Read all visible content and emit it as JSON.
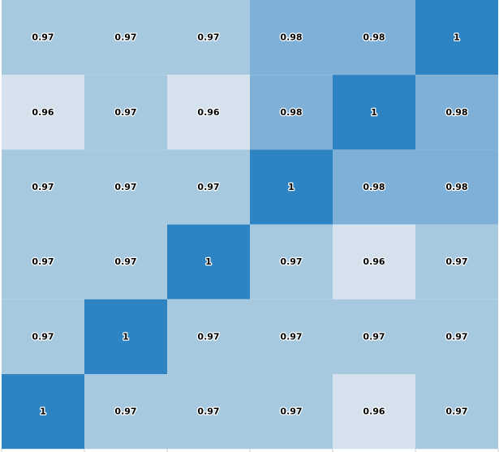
{
  "chart_data": {
    "type": "heatmap",
    "title": "",
    "xlabel": "",
    "ylabel": "",
    "rows": 6,
    "cols": 6,
    "values": [
      [
        0.97,
        0.97,
        0.97,
        0.98,
        0.98,
        1
      ],
      [
        0.96,
        0.97,
        0.96,
        0.98,
        1,
        0.98
      ],
      [
        0.97,
        0.97,
        0.97,
        1,
        0.98,
        0.98
      ],
      [
        0.97,
        0.97,
        1,
        0.97,
        0.96,
        0.97
      ],
      [
        0.97,
        1,
        0.97,
        0.97,
        0.97,
        0.97
      ],
      [
        1,
        0.97,
        0.97,
        0.97,
        0.96,
        0.97
      ]
    ],
    "labels": [
      [
        "0.97",
        "0.97",
        "0.97",
        "0.98",
        "0.98",
        "1"
      ],
      [
        "0.96",
        "0.97",
        "0.96",
        "0.98",
        "1",
        "0.98"
      ],
      [
        "0.97",
        "0.97",
        "0.97",
        "1",
        "0.98",
        "0.98"
      ],
      [
        "0.97",
        "0.97",
        "1",
        "0.97",
        "0.96",
        "0.97"
      ],
      [
        "0.97",
        "1",
        "0.97",
        "0.97",
        "0.97",
        "0.97"
      ],
      [
        "1",
        "0.97",
        "0.97",
        "0.97",
        "0.96",
        "0.97"
      ]
    ],
    "colorscale": {
      "0.96": "#d5e2ee",
      "0.97": "#a7c9e0",
      "0.98": "#7fb0d8",
      "1": "#2e84c3"
    },
    "grid": true,
    "legend": "none"
  }
}
